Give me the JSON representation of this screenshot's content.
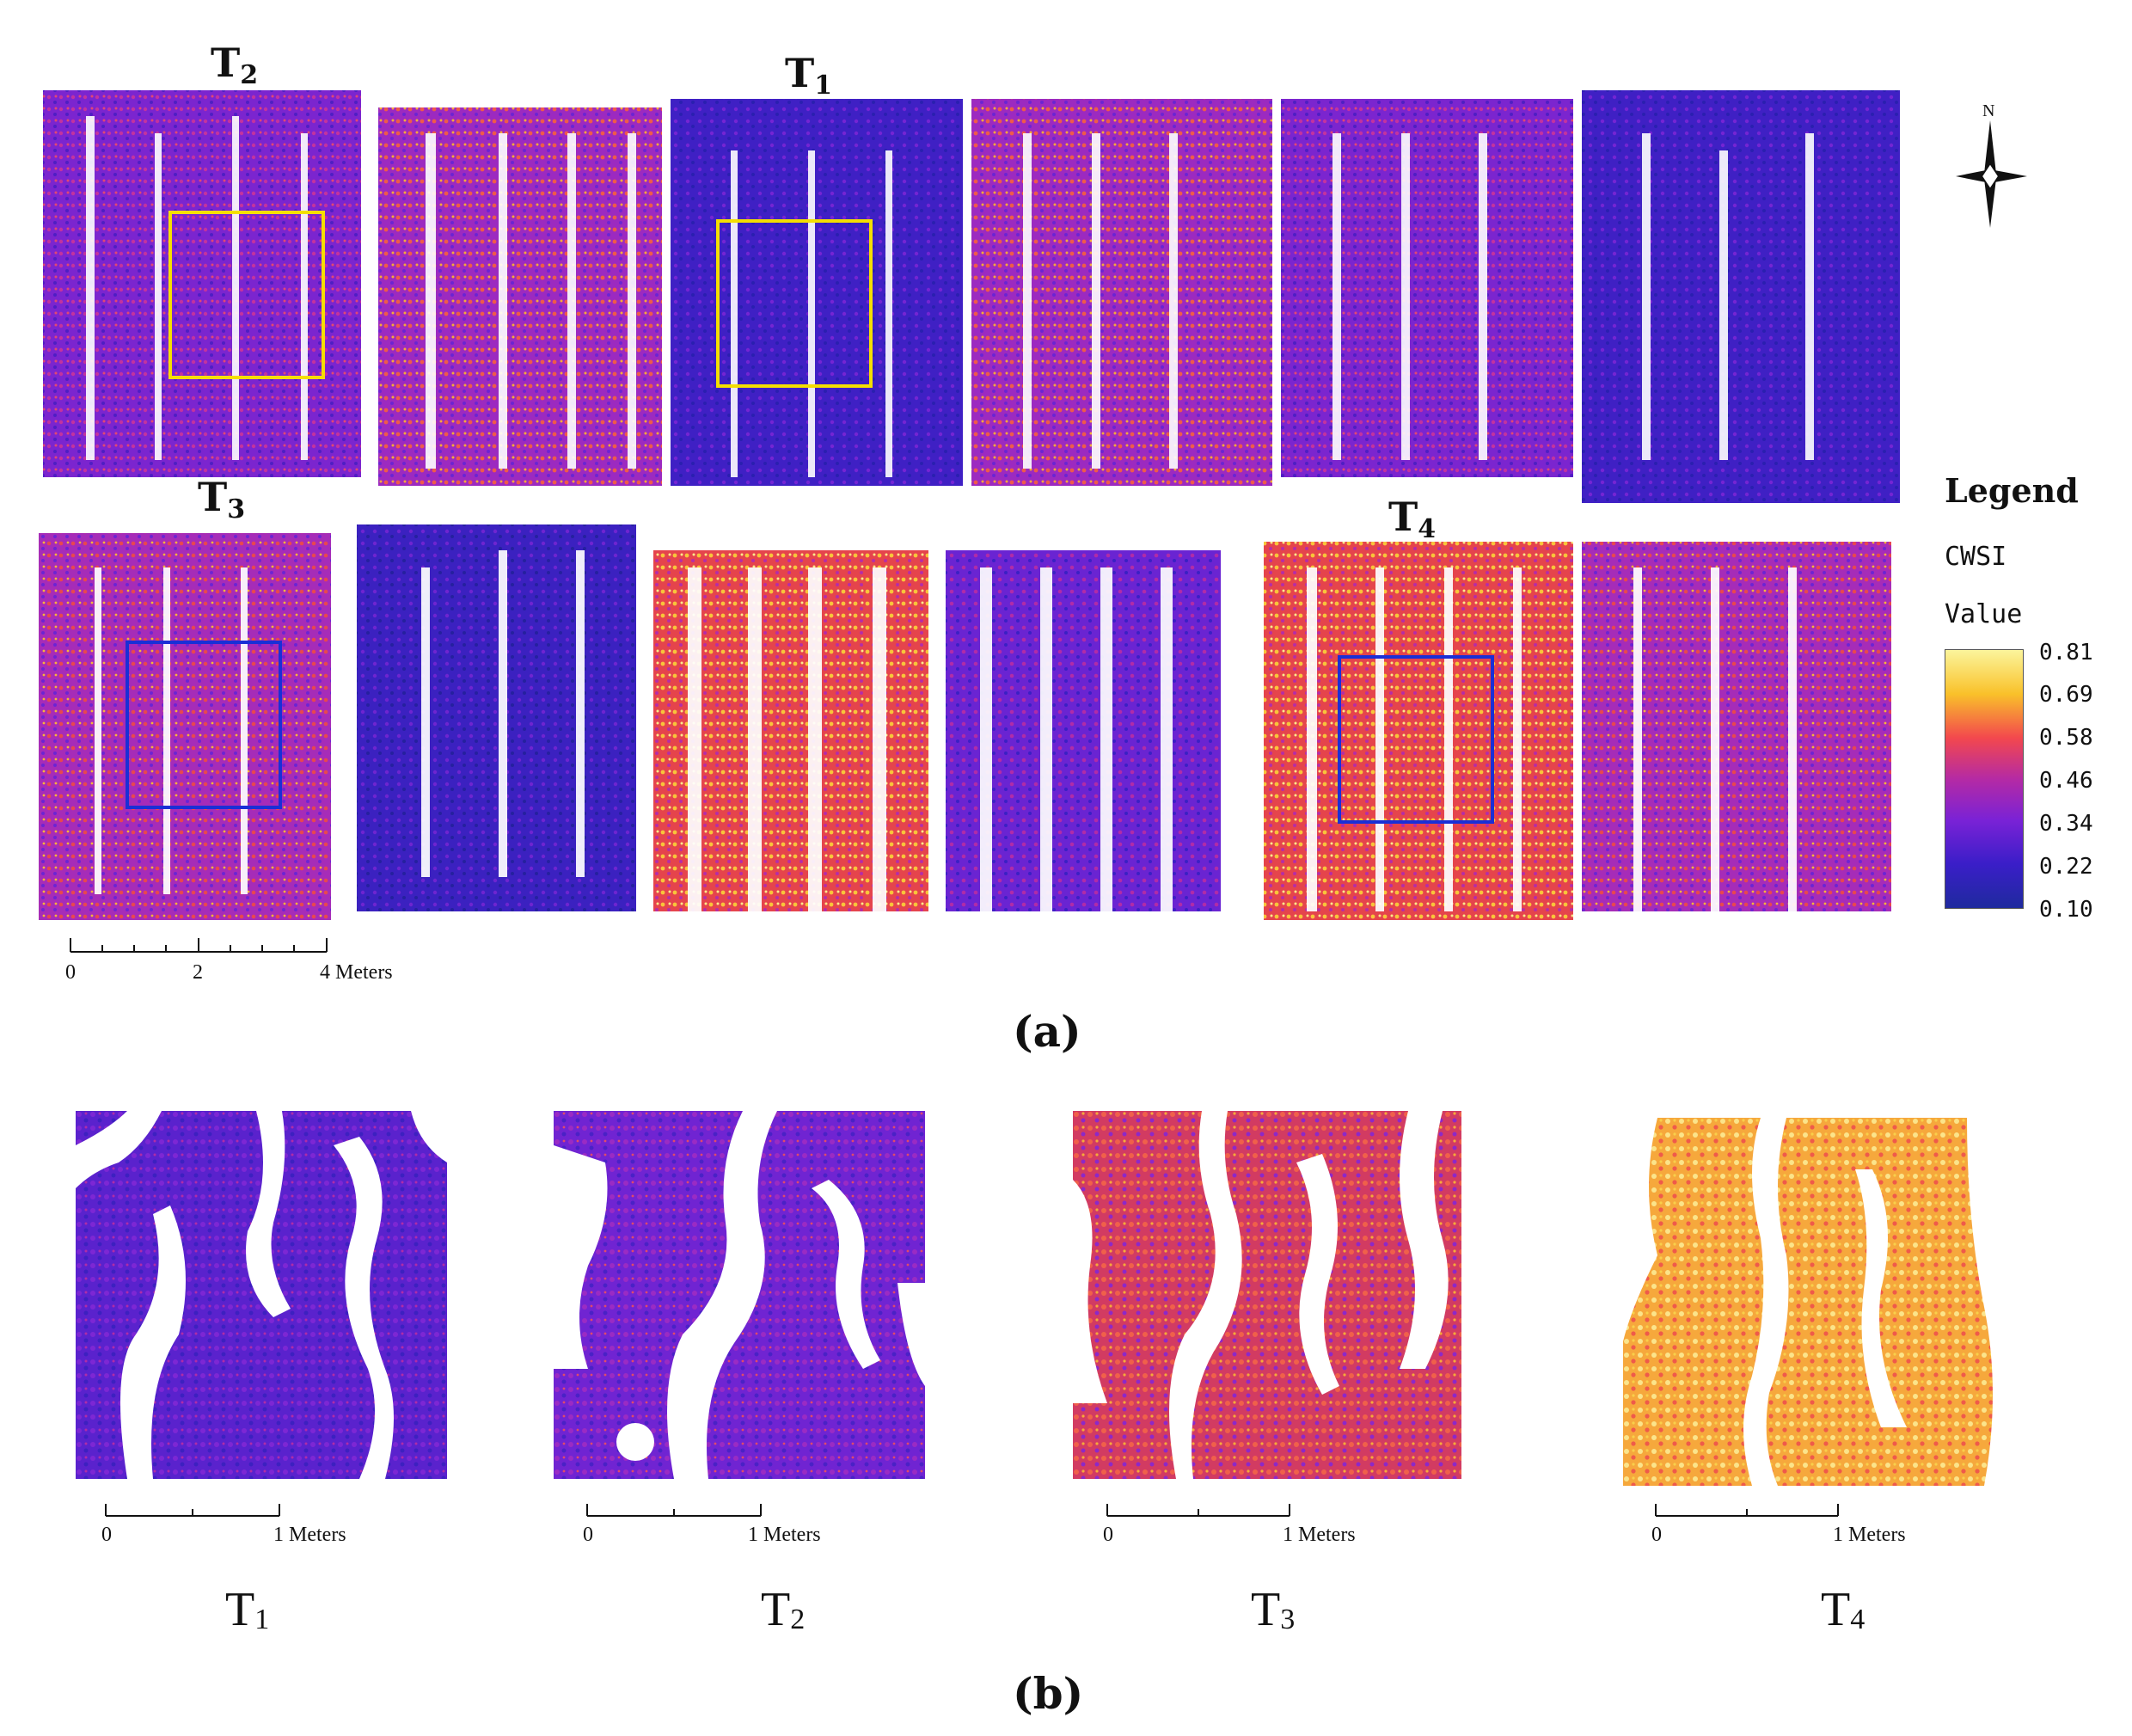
{
  "panel_a": {
    "caption": "(a)",
    "labels": [
      {
        "main": "T",
        "sub": "2"
      },
      {
        "main": "T",
        "sub": "1"
      },
      {
        "main": "T",
        "sub": "3"
      },
      {
        "main": "T",
        "sub": "4"
      }
    ],
    "scale_bar": {
      "ticks": [
        "0",
        "2",
        "4 Meters"
      ]
    },
    "north_label": "N"
  },
  "legend": {
    "title": "Legend",
    "field": "CWSI",
    "value_label": "Value",
    "ticks": [
      "0.81",
      "0.69",
      "0.58",
      "0.46",
      "0.34",
      "0.22",
      "0.10"
    ],
    "colors": [
      "#fbf59c",
      "#f9c12a",
      "#f3484d",
      "#b52aa4",
      "#7a22d6",
      "#3a1ec8",
      "#1f2a9e"
    ]
  },
  "panel_b": {
    "caption": "(b)",
    "scale_bar": {
      "ticks": [
        "0",
        "1 Meters"
      ]
    },
    "subplots": [
      {
        "main": "T",
        "sub": "1"
      },
      {
        "main": "T",
        "sub": "2"
      },
      {
        "main": "T",
        "sub": "3"
      },
      {
        "main": "T",
        "sub": "4"
      }
    ]
  },
  "colors": {
    "box_yellow": "#f5df00",
    "box_blue": "#1a2fd6"
  }
}
